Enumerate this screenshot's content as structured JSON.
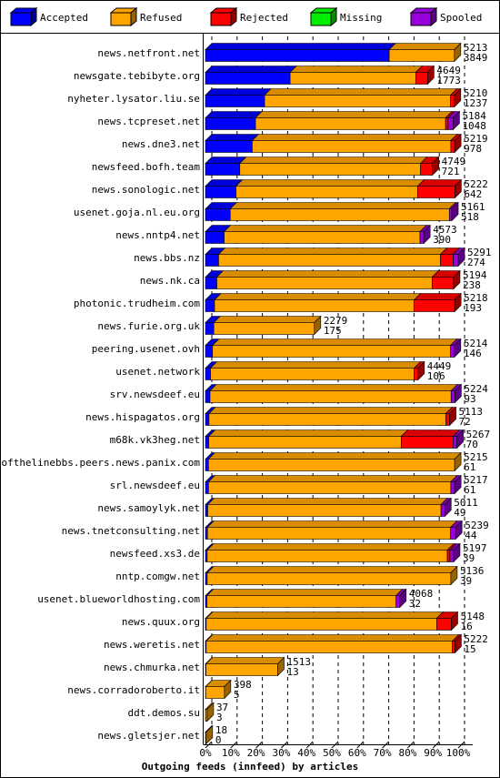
{
  "chart_data": {
    "type": "stacked-bar-3d",
    "orientation": "horizontal",
    "x_label": "Outgoing feeds (innfeed) by articles",
    "categories": [
      "news.netfront.net",
      "newsgate.tebibyte.org",
      "nyheter.lysator.liu.se",
      "news.tcpreset.net",
      "news.dne3.net",
      "newsfeed.bofh.team",
      "news.sonologic.net",
      "usenet.goja.nl.eu.org",
      "news.nntp4.net",
      "news.bbs.nz",
      "news.nk.ca",
      "photonic.trudheim.com",
      "news.furie.org.uk",
      "peering.usenet.ovh",
      "usenet.network",
      "srv.newsdeef.eu",
      "news.hispagatos.org",
      "m68k.vk3heg.net",
      "endofthelinebbs.peers.news.panix.com",
      "srl.newsdeef.eu",
      "news.samoylyk.net",
      "news.tnetconsulting.net",
      "newsfeed.xs3.de",
      "nntp.comgw.net",
      "usenet.blueworldhosting.com",
      "news.quux.org",
      "news.weretis.net",
      "news.chmurka.net",
      "news.corradoroberto.it",
      "ddt.demos.su",
      "news.gletsjer.net"
    ],
    "offered": [
      5213,
      4649,
      5210,
      5184,
      5219,
      4749,
      5222,
      5161,
      4573,
      5291,
      5194,
      5218,
      2279,
      5214,
      4449,
      5224,
      5113,
      5267,
      5215,
      5217,
      5011,
      5239,
      5197,
      5136,
      4068,
      5148,
      5222,
      1513,
      398,
      37,
      18
    ],
    "accepted": [
      3849,
      1773,
      1237,
      1048,
      978,
      721,
      642,
      518,
      390,
      274,
      238,
      193,
      175,
      146,
      106,
      93,
      72,
      70,
      61,
      61,
      49,
      44,
      39,
      39,
      32,
      16,
      15,
      13,
      5,
      3,
      0
    ],
    "series": [
      {
        "name": "Accepted",
        "color": "#0000ff",
        "values": [
          72.7,
          33.5,
          23.4,
          19.8,
          18.5,
          13.6,
          12.1,
          9.8,
          7.4,
          5.2,
          4.5,
          3.6,
          3.3,
          2.8,
          2.0,
          1.8,
          1.4,
          1.3,
          1.2,
          1.2,
          0.9,
          0.8,
          0.7,
          0.7,
          0.6,
          0.3,
          0.3,
          0.2,
          0.1,
          0.06,
          0
        ]
      },
      {
        "name": "Refused",
        "color": "#ffa500",
        "values": [
          25.8,
          49.7,
          73.6,
          75.2,
          78.6,
          71.5,
          71.9,
          86.7,
          77.5,
          87.8,
          85.2,
          79,
          39.8,
          94.2,
          80.6,
          95.4,
          93.7,
          76.2,
          97.4,
          95.9,
          92.3,
          96.2,
          95,
          96.4,
          74.8,
          91.2,
          97.4,
          28.4,
          7.4,
          0.64,
          0.3
        ]
      },
      {
        "name": "Rejected",
        "color": "#ff0000",
        "values": [
          0,
          4.7,
          1.5,
          1,
          1.5,
          4.7,
          14.7,
          0,
          0,
          5,
          8.5,
          16,
          0,
          0,
          1.5,
          0,
          1.5,
          20.5,
          0,
          0,
          0,
          0,
          1,
          0,
          0,
          5.8,
          1,
          0,
          0,
          0,
          0
        ]
      },
      {
        "name": "Missing",
        "color": "#00ee00",
        "values": [
          0,
          0,
          0,
          0,
          0,
          0,
          0,
          0,
          0,
          0,
          0,
          0,
          0,
          0,
          0,
          0,
          0,
          0,
          0,
          0,
          0,
          0,
          0,
          0,
          0,
          0,
          0,
          0,
          0,
          0,
          0
        ]
      },
      {
        "name": "Spooled",
        "color": "#9900dd",
        "values": [
          0,
          0,
          0,
          2,
          0,
          0,
          0,
          1,
          1.5,
          2,
          0,
          0,
          0,
          1.5,
          0,
          1.5,
          0,
          1.5,
          0,
          1.5,
          1.5,
          2,
          1.5,
          0,
          1.5,
          0,
          0,
          0,
          0,
          0,
          0
        ]
      }
    ],
    "xlim": [
      0,
      100
    ],
    "xticks": [
      {
        "value": 0,
        "label": "0%"
      },
      {
        "value": 10,
        "label": "10%"
      },
      {
        "value": 20,
        "label": "20%"
      },
      {
        "value": 30,
        "label": "30%"
      },
      {
        "value": 40,
        "label": "40%"
      },
      {
        "value": 50,
        "label": "50%"
      },
      {
        "value": 60,
        "label": "60%"
      },
      {
        "value": 70,
        "label": "70%"
      },
      {
        "value": 80,
        "label": "80%"
      },
      {
        "value": 90,
        "label": "90%"
      },
      {
        "value": 100,
        "label": "100%"
      }
    ],
    "grid": true,
    "legend": "top"
  }
}
